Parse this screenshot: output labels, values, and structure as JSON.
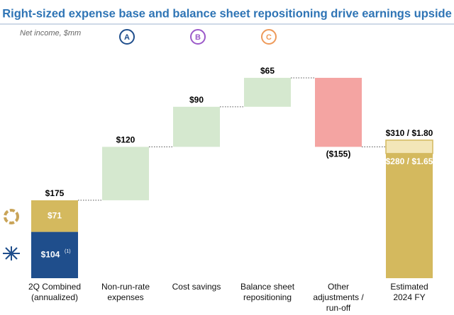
{
  "chart_data": {
    "type": "waterfall",
    "title": "Right-sized expense base and balance sheet repositioning drive earnings upside",
    "subtitle": "Net income, $mm",
    "markers": [
      {
        "label": "A",
        "color": "#1f4e8c"
      },
      {
        "label": "B",
        "color": "#9b59c9"
      },
      {
        "label": "C",
        "color": "#ee9a5a"
      }
    ],
    "categories": [
      "2Q Combined\n(annualized)",
      "Non-run-rate\nexpenses",
      "Cost savings",
      "Balance sheet\nrepositioning",
      "Other\nadjustments /\nrun-off",
      "Estimated\n2024 FY"
    ],
    "start": {
      "total": 175,
      "total_label": "$175",
      "segments": [
        {
          "value": 104,
          "label": "$104",
          "footnote": "(1)",
          "color": "#1f4e8c"
        },
        {
          "value": 71,
          "label": "$71",
          "color": "#d4b95e"
        }
      ]
    },
    "steps": {
      "values": [
        120,
        90,
        65,
        -155
      ],
      "value_labels": [
        "$120",
        "$90",
        "$65",
        "($155)"
      ],
      "colors": [
        "#d5e8cf",
        "#d5e8cf",
        "#d5e8cf",
        "#f4a4a2"
      ]
    },
    "final": [
      {
        "value": 280,
        "eps": 1.65,
        "label": "$280 / $1.65",
        "color": "#d4b95e"
      },
      {
        "value": 310,
        "eps": 1.8,
        "label": "$310 / $1.80",
        "color": "#f3e6b8"
      }
    ]
  }
}
